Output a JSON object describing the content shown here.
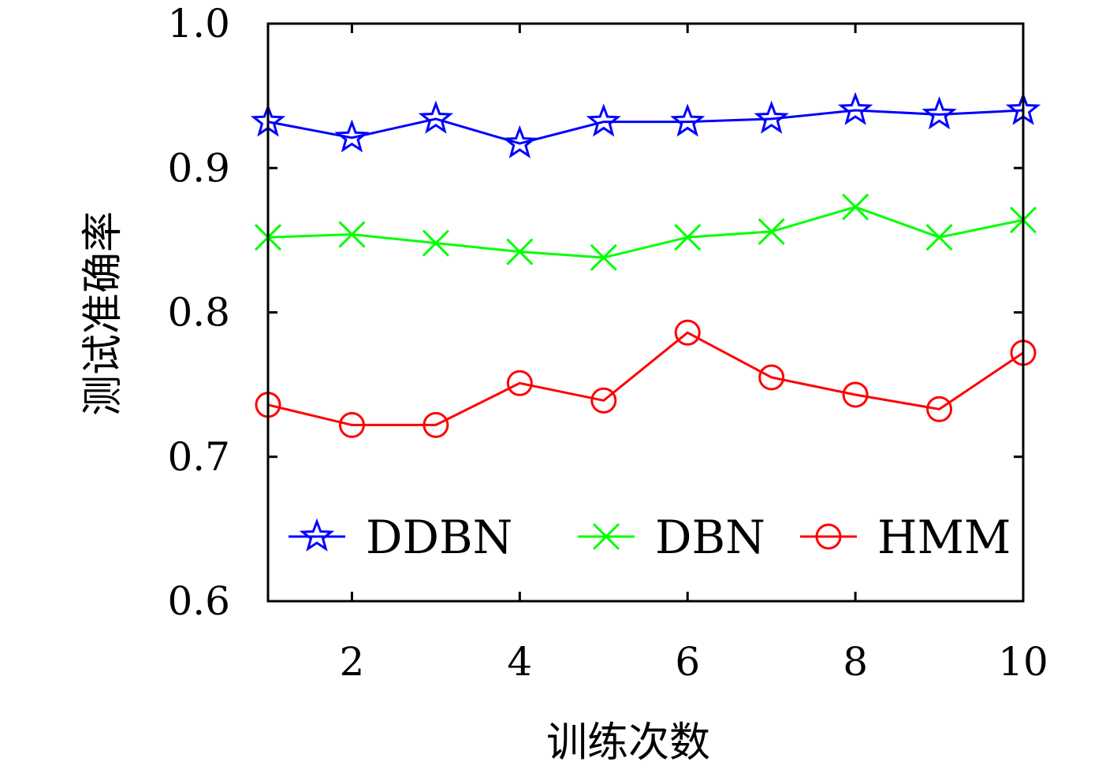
{
  "chart_data": {
    "type": "line",
    "x": [
      1,
      2,
      3,
      4,
      5,
      6,
      7,
      8,
      9,
      10
    ],
    "xlim": [
      1,
      10
    ],
    "ylim": [
      0.6,
      1.0
    ],
    "xticks": [
      2,
      4,
      6,
      8,
      10
    ],
    "xtick_labels": [
      "2",
      "4",
      "6",
      "8",
      "10"
    ],
    "yticks": [
      0.6,
      0.7,
      0.8,
      0.9,
      1.0
    ],
    "ytick_labels": [
      "0.6",
      "0.7",
      "0.8",
      "0.9",
      "1.0"
    ],
    "xlabel": "训练次数",
    "ylabel": "测试准确率",
    "grid": false,
    "legend_position": "bottom",
    "series": [
      {
        "name": "DDBN",
        "color": "#0000ff",
        "marker": "star",
        "values": [
          0.932,
          0.921,
          0.934,
          0.917,
          0.932,
          0.932,
          0.934,
          0.94,
          0.937,
          0.94
        ]
      },
      {
        "name": "DBN",
        "color": "#00ff00",
        "marker": "x",
        "values": [
          0.852,
          0.854,
          0.848,
          0.842,
          0.838,
          0.852,
          0.856,
          0.873,
          0.852,
          0.864
        ]
      },
      {
        "name": "HMM",
        "color": "#ff0000",
        "marker": "circle",
        "values": [
          0.736,
          0.722,
          0.722,
          0.751,
          0.739,
          0.786,
          0.755,
          0.743,
          0.733,
          0.772
        ]
      }
    ]
  }
}
